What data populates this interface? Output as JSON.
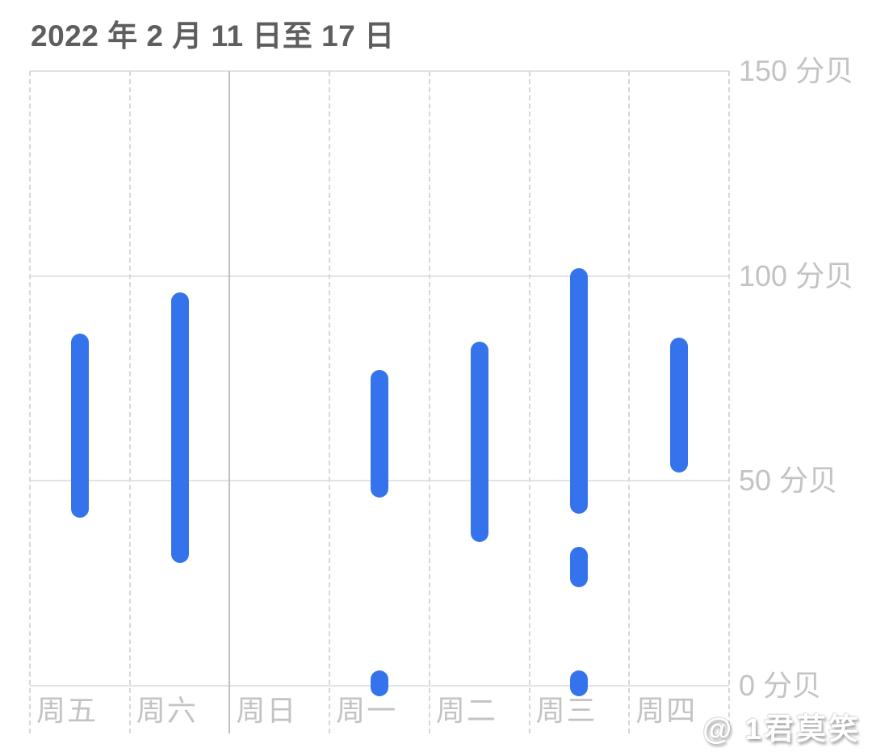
{
  "header": {
    "title": "2022 年 2 月 11 日至 17 日"
  },
  "watermark": {
    "text": "@ 1君莫笑"
  },
  "chart_data": {
    "type": "bar",
    "subtype": "vertical_range_capsules",
    "title": "2022 年 2 月 11 日至 17 日",
    "xlabel": "",
    "ylabel": "分贝",
    "ylim": [
      0,
      150
    ],
    "y_ticks": [
      150,
      100,
      50,
      0
    ],
    "y_tick_suffix": " 分贝",
    "grid": {
      "horizontal_lines": true,
      "vertical_dashed_lines": true,
      "solid_divider_after_category_index": 1
    },
    "legend_position": "none",
    "bar_color": "#3573ED",
    "axis_label_color": "#c3c3c5",
    "gridline_color": "#e3e3e5",
    "categories": [
      "周五",
      "周六",
      "周日",
      "周一",
      "周二",
      "周三",
      "周四"
    ],
    "series": [
      {
        "category": "周五",
        "ranges_db": [
          [
            41,
            86
          ]
        ]
      },
      {
        "category": "周六",
        "ranges_db": [
          [
            30,
            96
          ]
        ]
      },
      {
        "category": "周日",
        "ranges_db": []
      },
      {
        "category": "周一",
        "ranges_db": [
          [
            46,
            77
          ],
          [
            0,
            1
          ]
        ]
      },
      {
        "category": "周二",
        "ranges_db": [
          [
            35,
            84
          ]
        ]
      },
      {
        "category": "周三",
        "ranges_db": [
          [
            42,
            102
          ],
          [
            24,
            34
          ],
          [
            0,
            1
          ]
        ]
      },
      {
        "category": "周四",
        "ranges_db": [
          [
            52,
            85
          ]
        ]
      }
    ]
  }
}
